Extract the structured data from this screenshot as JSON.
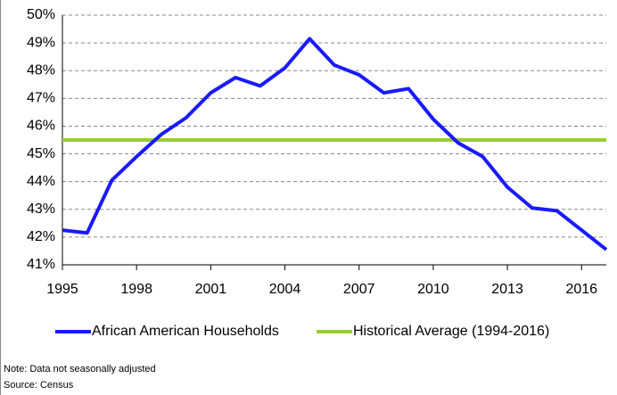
{
  "chart_data": {
    "type": "line",
    "x": [
      1995,
      1996,
      1997,
      1998,
      1999,
      2000,
      2001,
      2002,
      2003,
      2004,
      2005,
      2006,
      2007,
      2008,
      2009,
      2010,
      2011,
      2012,
      2013,
      2014,
      2015,
      2016,
      2017
    ],
    "series": [
      {
        "name": "African American Households",
        "color": "#1a1aff",
        "values": [
          42.25,
          42.15,
          44.05,
          44.9,
          45.7,
          46.3,
          47.2,
          47.75,
          47.45,
          48.1,
          49.15,
          48.2,
          47.85,
          47.2,
          47.35,
          46.25,
          45.4,
          44.9,
          43.8,
          43.05,
          42.95,
          42.25,
          41.55
        ]
      },
      {
        "name": "Historical Average (1994-2016)",
        "color": "#99cc33",
        "values": [
          45.5,
          45.5,
          45.5,
          45.5,
          45.5,
          45.5,
          45.5,
          45.5,
          45.5,
          45.5,
          45.5,
          45.5,
          45.5,
          45.5,
          45.5,
          45.5,
          45.5,
          45.5,
          45.5,
          45.5,
          45.5,
          45.5,
          45.5
        ]
      }
    ],
    "xlim": [
      1995,
      2017
    ],
    "xticks": [
      1995,
      1998,
      2001,
      2004,
      2007,
      2010,
      2013,
      2016
    ],
    "ylim": [
      41,
      50
    ],
    "yticks": [
      {
        "value": 41,
        "label": "41%"
      },
      {
        "value": 42,
        "label": "42%"
      },
      {
        "value": 43,
        "label": "43%"
      },
      {
        "value": 44,
        "label": "44%"
      },
      {
        "value": 45,
        "label": "45%"
      },
      {
        "value": 46,
        "label": "46%"
      },
      {
        "value": 47,
        "label": "47%"
      },
      {
        "value": 48,
        "label": "48%"
      },
      {
        "value": 49,
        "label": "49%"
      },
      {
        "value": 50,
        "label": "50%"
      }
    ],
    "grid": true,
    "notes": [
      "Note: Data not seasonally adjusted",
      "Source: Census"
    ]
  }
}
